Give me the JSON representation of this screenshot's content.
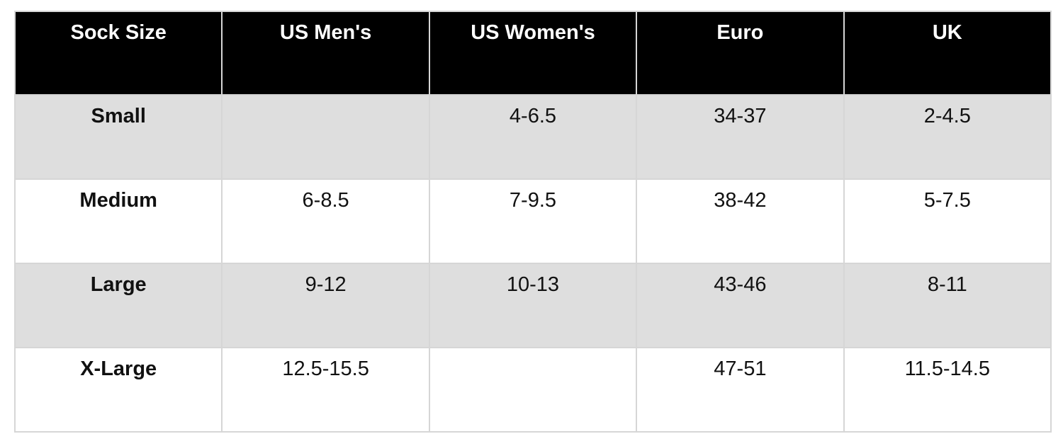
{
  "colors": {
    "header_bg": "#000000",
    "header_text": "#ffffff",
    "stripe_bg": "#dedede",
    "row_bg": "#ffffff",
    "grid": "#d6d6d6",
    "text": "#111111",
    "page_bg": "#ffffff"
  },
  "chart_data": {
    "type": "table",
    "columns": [
      "Sock Size",
      "US Men's",
      "US Women's",
      "Euro",
      "UK"
    ],
    "rows": [
      [
        "Small",
        "",
        "4-6.5",
        "34-37",
        "2-4.5"
      ],
      [
        "Medium",
        "6-8.5",
        "7-9.5",
        "38-42",
        "5-7.5"
      ],
      [
        "Large",
        "9-12",
        "10-13",
        "43-46",
        "8-11"
      ],
      [
        "X-Large",
        "12.5-15.5",
        "",
        "47-51",
        "11.5-14.5"
      ]
    ],
    "layout": {
      "striped_rows": [
        0,
        2
      ],
      "header_style": "black-background-white-bold-text",
      "first_column_bold": true,
      "grid": "on"
    }
  }
}
